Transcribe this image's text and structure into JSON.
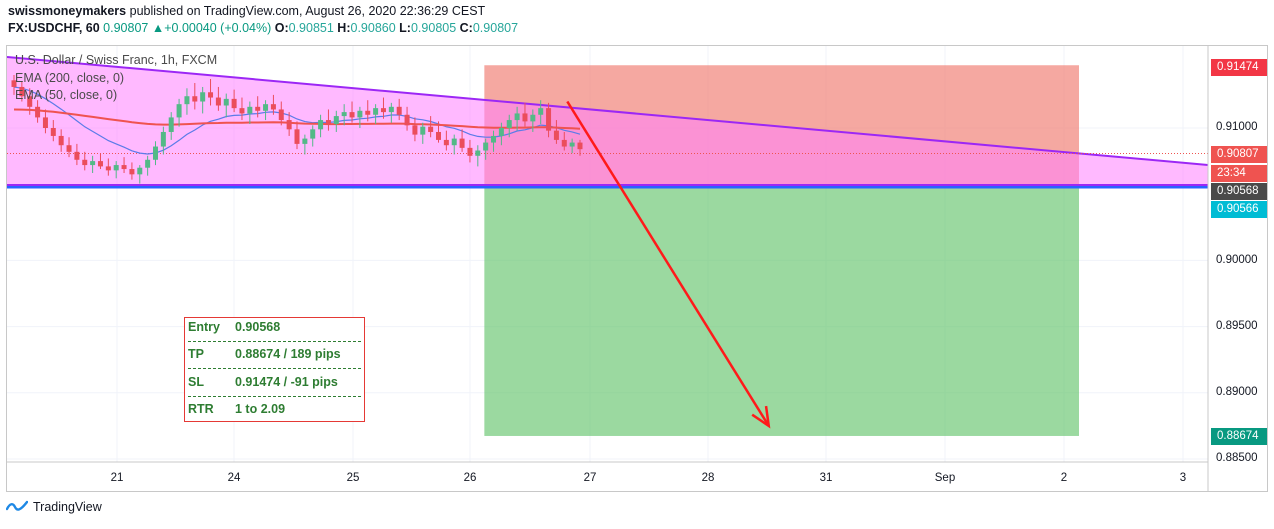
{
  "header": {
    "author": "swissmoneymakers",
    "published_text": "published on TradingView.com, August 26, 2020 22:36:29 CEST",
    "symbol": "FX:USDCHF, 60",
    "last": "0.90807",
    "change_arrow": "▲",
    "change": "+0.00040 (+0.04%)",
    "o_label": "O:",
    "o": "0.90851",
    "h_label": "H:",
    "h": "0.90860",
    "l_label": "L:",
    "l": "0.90805",
    "c_label": "C:",
    "c": "0.90807"
  },
  "legend": {
    "title": "U.S. Dollar / Swiss Franc, 1h, FXCM",
    "ema200": "EMA (200, close, 0)",
    "ema50": "EMA (50, close, 0)"
  },
  "info_box": {
    "rows": [
      {
        "key": "Entry",
        "value": "0.90568"
      },
      {
        "key": "TP",
        "value": "0.88674 / 189 pips"
      },
      {
        "key": "SL",
        "value": "0.91474 / -91 pips"
      },
      {
        "key": "RTR",
        "value": "1 to 2.09"
      }
    ]
  },
  "price_tags": [
    {
      "label": "0.91474",
      "color": "#f23645",
      "price": 0.91474
    },
    {
      "label": "0.90807",
      "color": "#ef5350",
      "price": 0.90807
    },
    {
      "label": "23:34",
      "color": "#ef5350",
      "price": 0.90732
    },
    {
      "label": "0.90568",
      "color": "#4a4a4a",
      "price": 0.90568
    },
    {
      "label": "0.90566",
      "color": "#00bcd4",
      "price": 0.90466
    },
    {
      "label": "0.88674",
      "color": "#089981",
      "price": 0.88674
    }
  ],
  "footer": {
    "brand": "TradingView"
  },
  "colors": {
    "up": "#53b987",
    "down": "#eb4d5c",
    "stop_zone": "#f28b82",
    "target_zone": "#66c56d",
    "wedge_fill": "#ff80ff",
    "wedge_line": "#9c27f5",
    "ema200": "#ef5350",
    "ema50": "#5b7be8",
    "arrow": "#ff1a1a"
  },
  "chart_data": {
    "type": "candlestick",
    "title": "U.S. Dollar / Swiss Franc, 1h, FXCM",
    "ylim": [
      0.8848,
      0.9152
    ],
    "x_ticks": [
      "21",
      "24",
      "25",
      "26",
      "27",
      "28",
      "31",
      "Sep",
      "2",
      "3"
    ],
    "y_ticks": [
      0.91,
      0.9,
      0.895,
      0.89,
      0.885
    ],
    "y_tick_labels": [
      "0.91000",
      "0.90000",
      "0.89500",
      "0.89000",
      "0.88500"
    ],
    "position": {
      "side": "short",
      "entry": 0.90568,
      "stop_loss": 0.91474,
      "take_profit": 0.88674,
      "x_start_day": 26.1,
      "x_end_day": 29.1
    },
    "ema200_value": 0.9097,
    "projected_arrow": {
      "from": [
        26.8,
        0.912
      ],
      "to": [
        28.5,
        0.8875
      ]
    },
    "candles": [
      [
        0.9136,
        0.914,
        0.9125,
        0.9131
      ],
      [
        0.9131,
        0.9135,
        0.912,
        0.9124
      ],
      [
        0.9124,
        0.913,
        0.911,
        0.9116
      ],
      [
        0.9116,
        0.9121,
        0.9104,
        0.9108
      ],
      [
        0.9108,
        0.9114,
        0.9096,
        0.91
      ],
      [
        0.91,
        0.9106,
        0.909,
        0.9094
      ],
      [
        0.9094,
        0.9099,
        0.9082,
        0.9087
      ],
      [
        0.9087,
        0.9093,
        0.9078,
        0.9082
      ],
      [
        0.9082,
        0.9088,
        0.9072,
        0.9076
      ],
      [
        0.9076,
        0.9082,
        0.9068,
        0.9072
      ],
      [
        0.9072,
        0.9079,
        0.9066,
        0.9075
      ],
      [
        0.9075,
        0.9081,
        0.9069,
        0.9071
      ],
      [
        0.9071,
        0.9077,
        0.9064,
        0.9068
      ],
      [
        0.9068,
        0.9075,
        0.9062,
        0.9072
      ],
      [
        0.9072,
        0.9078,
        0.9066,
        0.9069
      ],
      [
        0.9069,
        0.9074,
        0.9061,
        0.9065
      ],
      [
        0.9065,
        0.9072,
        0.9058,
        0.907
      ],
      [
        0.907,
        0.9079,
        0.9064,
        0.9076
      ],
      [
        0.9076,
        0.909,
        0.9072,
        0.9086
      ],
      [
        0.9086,
        0.9101,
        0.908,
        0.9097
      ],
      [
        0.9097,
        0.9112,
        0.9091,
        0.9108
      ],
      [
        0.9108,
        0.9122,
        0.9101,
        0.9118
      ],
      [
        0.9118,
        0.913,
        0.911,
        0.9124
      ],
      [
        0.9124,
        0.9134,
        0.9114,
        0.912
      ],
      [
        0.912,
        0.9131,
        0.9111,
        0.9127
      ],
      [
        0.9127,
        0.9137,
        0.9117,
        0.9123
      ],
      [
        0.9123,
        0.9131,
        0.9113,
        0.9117
      ],
      [
        0.9117,
        0.9126,
        0.9108,
        0.9122
      ],
      [
        0.9122,
        0.9129,
        0.9112,
        0.9115
      ],
      [
        0.9115,
        0.9123,
        0.9106,
        0.9111
      ],
      [
        0.9111,
        0.912,
        0.9103,
        0.9116
      ],
      [
        0.9116,
        0.9124,
        0.9108,
        0.9113
      ],
      [
        0.9113,
        0.9121,
        0.9106,
        0.9118
      ],
      [
        0.9118,
        0.9125,
        0.911,
        0.9114
      ],
      [
        0.9114,
        0.912,
        0.9102,
        0.9106
      ],
      [
        0.9106,
        0.9112,
        0.9094,
        0.9099
      ],
      [
        0.9099,
        0.9105,
        0.9084,
        0.9088
      ],
      [
        0.9088,
        0.9095,
        0.908,
        0.9092
      ],
      [
        0.9092,
        0.9102,
        0.9086,
        0.9099
      ],
      [
        0.9099,
        0.911,
        0.9093,
        0.9106
      ],
      [
        0.9106,
        0.9114,
        0.9098,
        0.9103
      ],
      [
        0.9103,
        0.9113,
        0.9097,
        0.9109
      ],
      [
        0.9109,
        0.9118,
        0.9102,
        0.9112
      ],
      [
        0.9112,
        0.912,
        0.9104,
        0.9108
      ],
      [
        0.9108,
        0.9116,
        0.91,
        0.9113
      ],
      [
        0.9113,
        0.9121,
        0.9105,
        0.911
      ],
      [
        0.911,
        0.9118,
        0.9103,
        0.9115
      ],
      [
        0.9115,
        0.9123,
        0.9107,
        0.9112
      ],
      [
        0.9112,
        0.9119,
        0.9104,
        0.9116
      ],
      [
        0.9116,
        0.9122,
        0.9106,
        0.911
      ],
      [
        0.911,
        0.9116,
        0.9098,
        0.9102
      ],
      [
        0.9102,
        0.9108,
        0.909,
        0.9095
      ],
      [
        0.9095,
        0.9104,
        0.9088,
        0.9101
      ],
      [
        0.9101,
        0.9109,
        0.9093,
        0.9097
      ],
      [
        0.9097,
        0.9105,
        0.9089,
        0.9091
      ],
      [
        0.9091,
        0.9098,
        0.9083,
        0.9087
      ],
      [
        0.9087,
        0.9095,
        0.908,
        0.9092
      ],
      [
        0.9092,
        0.9099,
        0.9082,
        0.9085
      ],
      [
        0.9085,
        0.9091,
        0.9074,
        0.9079
      ],
      [
        0.9079,
        0.9087,
        0.9071,
        0.9083
      ],
      [
        0.9083,
        0.9092,
        0.9076,
        0.9089
      ],
      [
        0.9089,
        0.9098,
        0.9082,
        0.9094
      ],
      [
        0.9094,
        0.9104,
        0.9087,
        0.91
      ],
      [
        0.91,
        0.911,
        0.9093,
        0.9106
      ],
      [
        0.9106,
        0.9116,
        0.9098,
        0.9111
      ],
      [
        0.9111,
        0.9119,
        0.9101,
        0.9105
      ],
      [
        0.9105,
        0.9114,
        0.9097,
        0.911
      ],
      [
        0.911,
        0.9121,
        0.9103,
        0.9115
      ],
      [
        0.9115,
        0.9119,
        0.9093,
        0.9098
      ],
      [
        0.9098,
        0.9106,
        0.9088,
        0.9091
      ],
      [
        0.9091,
        0.9097,
        0.9083,
        0.9086
      ],
      [
        0.9086,
        0.9092,
        0.9081,
        0.9089
      ],
      [
        0.9089,
        0.9091,
        0.9079,
        0.9084
      ]
    ]
  }
}
